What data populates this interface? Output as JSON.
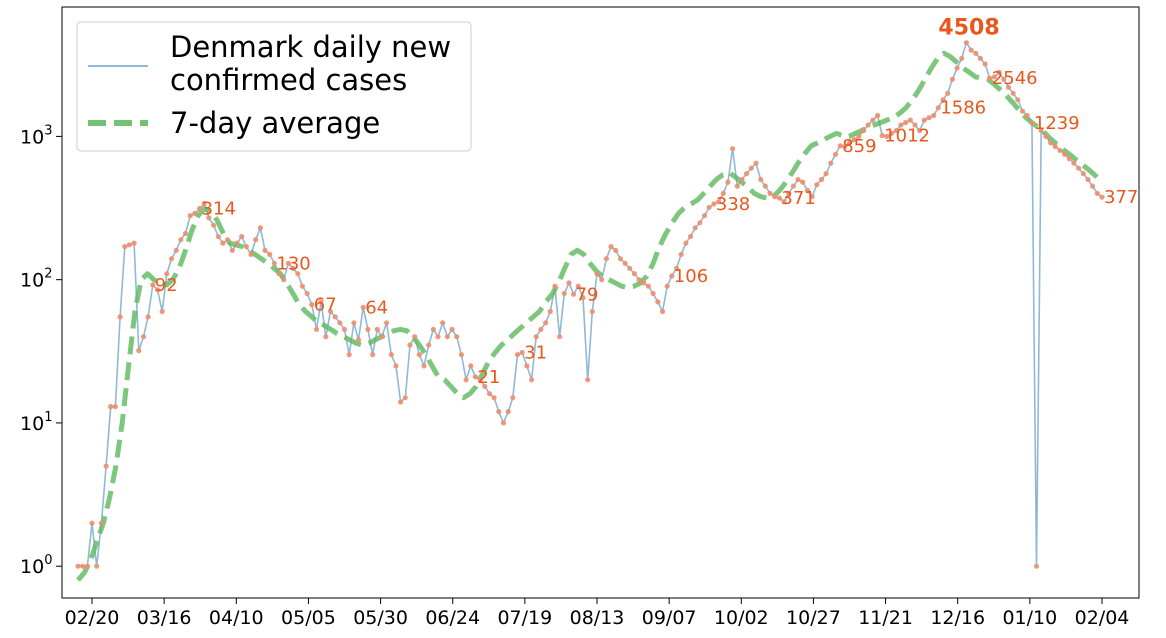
{
  "chart_data": {
    "type": "line",
    "yscale": "log",
    "ylim": [
      0.6,
      8000
    ],
    "y_ticks": [
      {
        "value": 1,
        "base": "10",
        "exp": "0"
      },
      {
        "value": 10,
        "base": "10",
        "exp": "1"
      },
      {
        "value": 100,
        "base": "10",
        "exp": "2"
      },
      {
        "value": 1000,
        "base": "10",
        "exp": "3"
      }
    ],
    "x_ticks": [
      "02/20",
      "03/16",
      "04/10",
      "05/05",
      "05/30",
      "06/24",
      "07/19",
      "08/13",
      "09/07",
      "10/02",
      "10/27",
      "11/21",
      "12/16",
      "01/10",
      "02/04"
    ],
    "grid": false,
    "legend_position": "upper-left",
    "series": [
      {
        "name": "Denmark daily new confirmed cases",
        "style": "thin solid line with dot markers",
        "color": "#8fb9d6",
        "marker_color": "#ed8f6e",
        "values": [
          1,
          1,
          1,
          2,
          1,
          2,
          5,
          13,
          13,
          55,
          170,
          175,
          180,
          32,
          40,
          55,
          92,
          85,
          60,
          110,
          140,
          160,
          190,
          210,
          280,
          290,
          314,
          340,
          270,
          240,
          200,
          180,
          190,
          160,
          180,
          200,
          170,
          150,
          190,
          230,
          160,
          150,
          130,
          110,
          100,
          130,
          120,
          110,
          90,
          80,
          67,
          45,
          70,
          40,
          60,
          55,
          50,
          45,
          30,
          50,
          38,
          64,
          45,
          30,
          45,
          40,
          50,
          30,
          25,
          14,
          15,
          35,
          40,
          30,
          25,
          35,
          45,
          40,
          50,
          40,
          45,
          40,
          30,
          20,
          25,
          21,
          20,
          18,
          16,
          15,
          12,
          10,
          12,
          15,
          30,
          31,
          25,
          20,
          40,
          45,
          50,
          60,
          90,
          40,
          80,
          95,
          79,
          90,
          75,
          20,
          60,
          110,
          100,
          140,
          170,
          160,
          140,
          130,
          120,
          110,
          100,
          95,
          90,
          80,
          70,
          60,
          90,
          106,
          120,
          150,
          180,
          200,
          230,
          250,
          280,
          320,
          338,
          350,
          400,
          480,
          820,
          450,
          500,
          550,
          600,
          650,
          500,
          450,
          400,
          380,
          371,
          350,
          400,
          450,
          500,
          480,
          420,
          380,
          460,
          500,
          550,
          650,
          750,
          859,
          850,
          900,
          950,
          1000,
          1100,
          1200,
          1300,
          1400,
          1012,
          1000,
          1050,
          1100,
          1200,
          1250,
          1300,
          1200,
          1100,
          1300,
          1350,
          1400,
          1586,
          1800,
          2000,
          2500,
          3000,
          3500,
          4508,
          4000,
          3800,
          3500,
          3200,
          2546,
          2600,
          2800,
          2500,
          2200,
          2000,
          1800,
          1500,
          1400,
          1239,
          1,
          1100,
          1000,
          900,
          850,
          800,
          750,
          700,
          650,
          600,
          550,
          500,
          450,
          400,
          377
        ]
      },
      {
        "name": "7-day average",
        "style": "thick dashed line",
        "color": "#5cb85c",
        "values": [
          0.8,
          0.9,
          1.1,
          1.5,
          2.0,
          3.0,
          5.0,
          10.0,
          25.0,
          60.0,
          100.0,
          110.0,
          100.0,
          95.0,
          92.0,
          100.0,
          120.0,
          160.0,
          220.0,
          280.0,
          314.0,
          300.0,
          260.0,
          210.0,
          180.0,
          175.0,
          170.0,
          160.0,
          150.0,
          140.0,
          130.0,
          120.0,
          110.0,
          95.0,
          80.0,
          67.0,
          60.0,
          55.0,
          50.0,
          48.0,
          45.0,
          42.0,
          40.0,
          38.0,
          36.0,
          35.0,
          36.0,
          38.0,
          40.0,
          42.0,
          44.0,
          45.0,
          44.0,
          40.0,
          35.0,
          30.0,
          25.0,
          21.0,
          20.0,
          18.0,
          16.0,
          15.0,
          16.0,
          18.0,
          22.0,
          27.0,
          31.0,
          35.0,
          38.0,
          42.0,
          46.0,
          50.0,
          55.0,
          60.0,
          70.0,
          79.0,
          95.0,
          120.0,
          150.0,
          160.0,
          150.0,
          130.0,
          115.0,
          105.0,
          100.0,
          95.0,
          90.0,
          88.0,
          90.0,
          95.0,
          106.0,
          130.0,
          170.0,
          210.0,
          250.0,
          290.0,
          320.0,
          338.0,
          360.0,
          400.0,
          450.0,
          500.0,
          540.0,
          560.0,
          520.0,
          480.0,
          440.0,
          400.0,
          380.0,
          371.0,
          380.0,
          420.0,
          480.0,
          560.0,
          660.0,
          760.0,
          859.0,
          900.0,
          950.0,
          1000.0,
          1050.0,
          1012.0,
          1000.0,
          1050.0,
          1100.0,
          1150.0,
          1200.0,
          1250.0,
          1300.0,
          1350.0,
          1450.0,
          1586.0,
          1800.0,
          2100.0,
          2500.0,
          3000.0,
          3500.0,
          3800.0,
          3600.0,
          3300.0,
          3000.0,
          2800.0,
          2600.0,
          2546.0,
          2500.0,
          2300.0,
          2100.0,
          1900.0,
          1700.0,
          1500.0,
          1350.0,
          1239.0,
          1150.0,
          1050.0,
          950.0,
          870.0,
          800.0,
          740.0,
          680.0,
          630.0,
          580.0,
          530.0,
          480.0
        ]
      }
    ],
    "annotations": [
      {
        "text": "92",
        "value": 92
      },
      {
        "text": "314",
        "value": 314
      },
      {
        "text": "130",
        "value": 130
      },
      {
        "text": "67",
        "value": 67
      },
      {
        "text": "64",
        "value": 64
      },
      {
        "text": "21",
        "value": 21
      },
      {
        "text": "31",
        "value": 31
      },
      {
        "text": "79",
        "value": 79
      },
      {
        "text": "106",
        "value": 106
      },
      {
        "text": "338",
        "value": 338
      },
      {
        "text": "371",
        "value": 371
      },
      {
        "text": "859",
        "value": 859
      },
      {
        "text": "1012",
        "value": 1012
      },
      {
        "text": "1586",
        "value": 1586
      },
      {
        "text": "4508",
        "value": 4508,
        "emphasis": "bold"
      },
      {
        "text": "2546",
        "value": 2546
      },
      {
        "text": "1239",
        "value": 1239
      },
      {
        "text": "377",
        "value": 377
      }
    ]
  }
}
